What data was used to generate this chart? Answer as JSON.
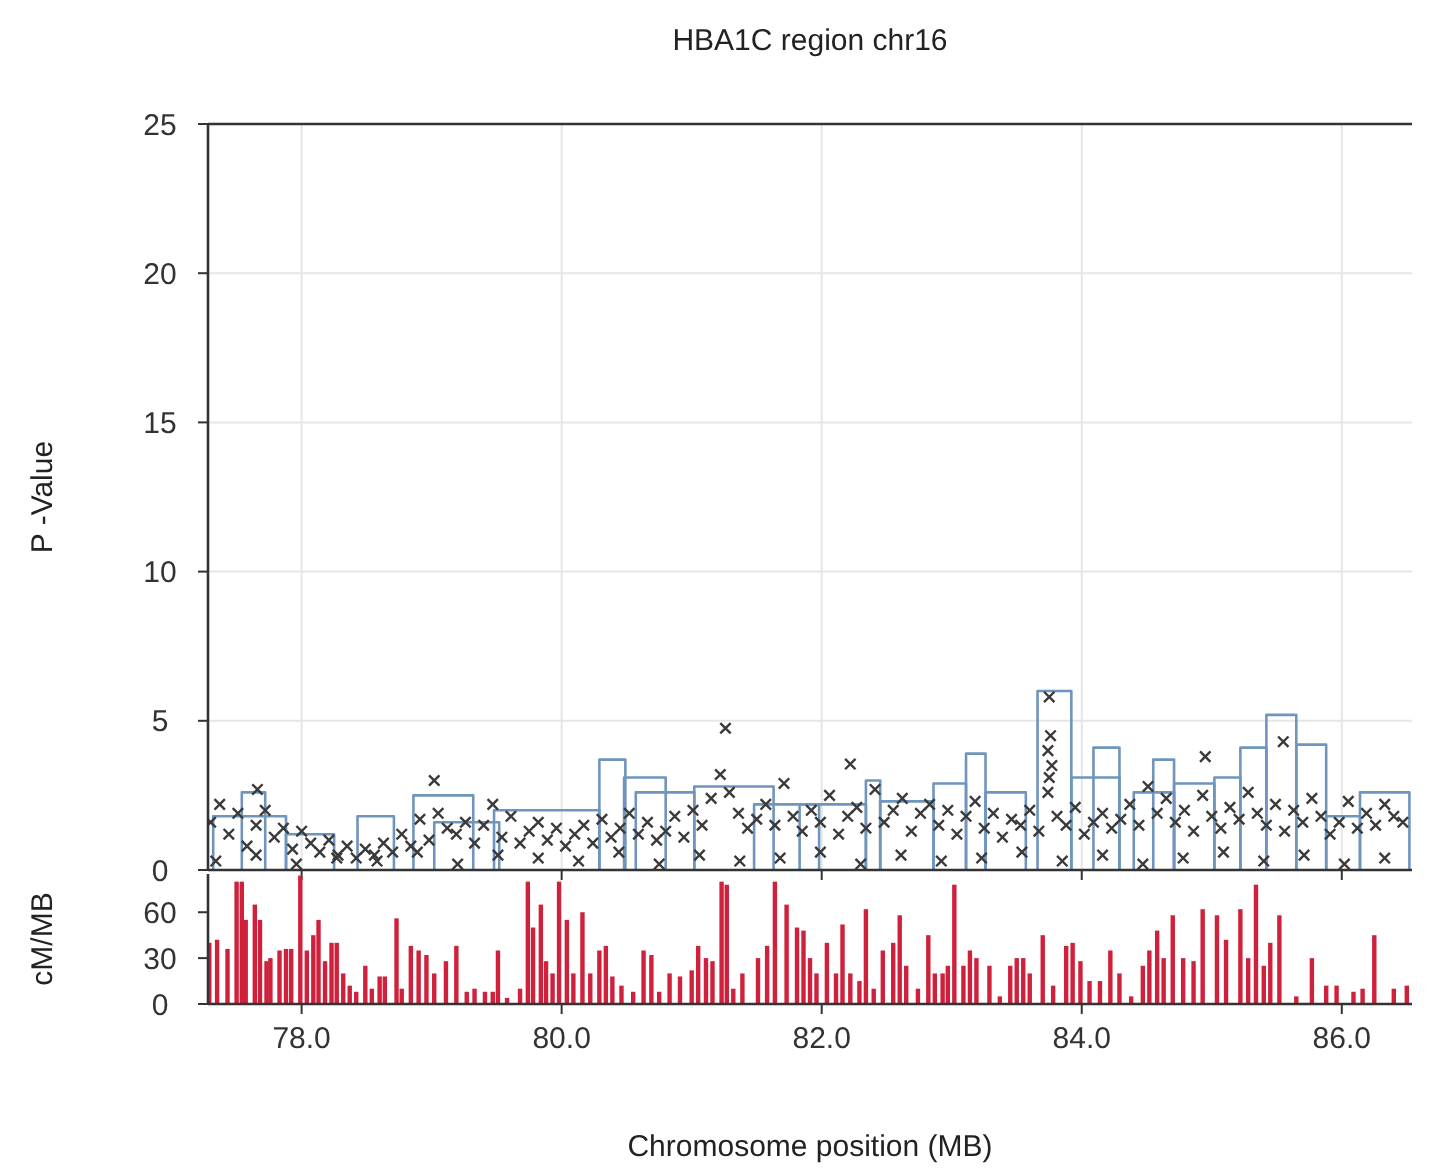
{
  "chart_data": [
    {
      "type": "scatter",
      "title": "HBA1C region chr16",
      "ylabel": "P -Value",
      "xlim": [
        77.28,
        86.54
      ],
      "ylim": [
        0,
        25
      ],
      "xticks": [
        78,
        80,
        82,
        84,
        86
      ],
      "yticks": [
        0,
        5,
        10,
        15,
        20,
        25
      ],
      "grid": true,
      "tick_labels": "y",
      "series": [
        {
          "type": "line",
          "color": "#6f95bd",
          "x": [
            77.32,
            77.32,
            77.88,
            77.88
          ],
          "values": [
            0,
            1.8,
            1.8,
            0
          ]
        },
        {
          "type": "line",
          "color": "#6f95bd",
          "x": [
            77.54,
            77.54,
            77.72,
            77.72
          ],
          "values": [
            0,
            2.6,
            2.6,
            0
          ]
        },
        {
          "type": "line",
          "color": "#6f95bd",
          "x": [
            77.88,
            77.88,
            78.25,
            78.25
          ],
          "values": [
            0,
            1.2,
            1.2,
            0
          ]
        },
        {
          "type": "line",
          "color": "#6f95bd",
          "x": [
            78.43,
            78.43,
            78.71,
            78.71
          ],
          "values": [
            0,
            1.8,
            1.8,
            0
          ]
        },
        {
          "type": "line",
          "color": "#6f95bd",
          "x": [
            78.86,
            78.86,
            79.32,
            79.32
          ],
          "values": [
            0,
            2.5,
            2.5,
            0
          ]
        },
        {
          "type": "line",
          "color": "#6f95bd",
          "x": [
            79.02,
            79.02,
            79.52,
            79.52
          ],
          "values": [
            0,
            1.6,
            1.6,
            0
          ]
        },
        {
          "type": "line",
          "color": "#6f95bd",
          "x": [
            79.48,
            79.48,
            80.29,
            80.29
          ],
          "values": [
            0,
            2.0,
            2.0,
            0
          ]
        },
        {
          "type": "line",
          "color": "#6f95bd",
          "x": [
            80.29,
            80.29,
            80.49,
            80.49
          ],
          "values": [
            0,
            3.7,
            3.7,
            0
          ]
        },
        {
          "type": "line",
          "color": "#6f95bd",
          "x": [
            80.48,
            80.48,
            80.8,
            80.8
          ],
          "values": [
            0,
            3.1,
            3.1,
            0
          ]
        },
        {
          "type": "line",
          "color": "#6f95bd",
          "x": [
            80.57,
            80.57,
            81.02,
            81.02
          ],
          "values": [
            0,
            2.6,
            2.6,
            0
          ]
        },
        {
          "type": "line",
          "color": "#6f95bd",
          "x": [
            81.02,
            81.02,
            81.63,
            81.63
          ],
          "values": [
            0,
            2.8,
            2.8,
            0
          ]
        },
        {
          "type": "line",
          "color": "#6f95bd",
          "x": [
            81.48,
            81.48,
            81.98,
            81.98
          ],
          "values": [
            0,
            2.2,
            2.2,
            0
          ]
        },
        {
          "type": "line",
          "color": "#6f95bd",
          "x": [
            81.83,
            81.83,
            82.34,
            82.34
          ],
          "values": [
            0,
            2.2,
            2.2,
            0
          ]
        },
        {
          "type": "line",
          "color": "#6f95bd",
          "x": [
            82.34,
            82.34,
            82.45,
            82.45
          ],
          "values": [
            0,
            3.0,
            3.0,
            0
          ]
        },
        {
          "type": "line",
          "color": "#6f95bd",
          "x": [
            82.45,
            82.45,
            82.86,
            82.86
          ],
          "values": [
            0,
            2.3,
            2.3,
            0
          ]
        },
        {
          "type": "line",
          "color": "#6f95bd",
          "x": [
            82.86,
            82.86,
            83.11,
            83.11
          ],
          "values": [
            0,
            2.9,
            2.9,
            0
          ]
        },
        {
          "type": "line",
          "color": "#6f95bd",
          "x": [
            83.11,
            83.11,
            83.26,
            83.26
          ],
          "values": [
            0,
            3.9,
            3.9,
            0
          ]
        },
        {
          "type": "line",
          "color": "#6f95bd",
          "x": [
            83.26,
            83.26,
            83.57,
            83.57
          ],
          "values": [
            0,
            2.6,
            2.6,
            0
          ]
        },
        {
          "type": "line",
          "color": "#6f95bd",
          "x": [
            83.66,
            83.66,
            83.92,
            83.92
          ],
          "values": [
            0,
            6.0,
            6.0,
            0
          ]
        },
        {
          "type": "line",
          "color": "#6f95bd",
          "x": [
            83.92,
            83.92,
            84.29,
            84.29
          ],
          "values": [
            0,
            3.1,
            3.1,
            0
          ]
        },
        {
          "type": "line",
          "color": "#6f95bd",
          "x": [
            84.09,
            84.09,
            84.29,
            84.29
          ],
          "values": [
            0,
            4.1,
            4.1,
            0
          ]
        },
        {
          "type": "line",
          "color": "#6f95bd",
          "x": [
            84.4,
            84.4,
            84.71,
            84.71
          ],
          "values": [
            0,
            2.6,
            2.6,
            0
          ]
        },
        {
          "type": "line",
          "color": "#6f95bd",
          "x": [
            84.55,
            84.55,
            84.71,
            84.71
          ],
          "values": [
            0,
            3.7,
            3.7,
            0
          ]
        },
        {
          "type": "line",
          "color": "#6f95bd",
          "x": [
            84.71,
            84.71,
            85.02,
            85.02
          ],
          "values": [
            0,
            2.9,
            2.9,
            0
          ]
        },
        {
          "type": "line",
          "color": "#6f95bd",
          "x": [
            85.02,
            85.02,
            85.22,
            85.22
          ],
          "values": [
            0,
            3.1,
            3.1,
            0
          ]
        },
        {
          "type": "line",
          "color": "#6f95bd",
          "x": [
            85.22,
            85.22,
            85.42,
            85.42
          ],
          "values": [
            0,
            4.1,
            4.1,
            0
          ]
        },
        {
          "type": "line",
          "color": "#6f95bd",
          "x": [
            85.42,
            85.42,
            85.65,
            85.65
          ],
          "values": [
            0,
            5.2,
            5.2,
            0
          ]
        },
        {
          "type": "line",
          "color": "#6f95bd",
          "x": [
            85.65,
            85.65,
            85.88,
            85.88
          ],
          "values": [
            0,
            4.2,
            4.2,
            0
          ]
        },
        {
          "type": "line",
          "color": "#6f95bd",
          "x": [
            85.88,
            85.88,
            86.14,
            86.14
          ],
          "values": [
            0,
            1.8,
            1.8,
            0
          ]
        },
        {
          "type": "line",
          "color": "#6f95bd",
          "x": [
            86.14,
            86.14,
            86.52,
            86.52
          ],
          "values": [
            0,
            2.6,
            2.6,
            0
          ]
        },
        {
          "marker": "cross",
          "color": "#3a3a3a",
          "x": [
            77.3,
            77.37,
            77.44,
            77.51,
            77.58,
            77.65,
            77.72,
            77.79,
            77.86,
            77.93,
            78.0,
            78.07,
            78.14,
            78.21,
            78.28,
            78.35,
            78.42,
            78.49,
            78.56,
            78.63,
            78.7,
            78.77,
            78.84,
            78.91,
            78.98,
            79.05,
            79.12,
            79.19,
            79.26,
            79.33,
            79.4,
            79.47,
            79.54,
            79.61,
            79.68,
            79.75,
            79.82,
            79.89,
            79.96,
            80.03,
            80.1,
            80.17,
            80.24,
            80.31,
            80.38,
            80.45,
            80.52,
            80.59,
            80.66,
            80.73,
            80.8,
            80.87,
            80.94,
            81.01,
            81.08,
            81.15,
            81.22,
            81.29,
            81.36,
            81.43,
            81.5,
            81.57,
            81.64,
            81.71,
            81.78,
            81.85,
            81.92,
            81.99,
            82.06,
            82.13,
            82.2,
            82.27,
            82.34,
            82.41,
            82.48,
            82.55,
            82.62,
            82.69,
            82.76,
            82.83,
            82.9,
            82.97,
            83.04,
            83.11,
            83.18,
            83.25,
            83.32,
            83.39,
            83.46,
            83.53,
            83.6,
            83.67,
            83.74,
            83.81,
            83.88,
            83.95,
            84.02,
            84.09,
            84.16,
            84.23,
            84.3,
            84.37,
            84.44,
            84.51,
            84.58,
            84.65,
            84.72,
            84.79,
            84.86,
            84.93,
            85.0,
            85.07,
            85.14,
            85.21,
            85.28,
            85.35,
            85.42,
            85.49,
            85.56,
            85.63,
            85.7,
            85.77,
            85.84,
            85.91,
            85.98,
            86.05,
            86.12,
            86.19,
            86.26,
            86.33,
            86.4,
            86.47,
            81.26,
            82.22,
            83.75,
            83.76,
            83.74,
            83.77,
            83.75,
            84.95,
            85.55,
            79.02,
            77.66,
            77.34,
            77.65,
            77.96,
            78.27,
            78.58,
            78.89,
            79.2,
            79.51,
            79.82,
            80.13,
            80.44,
            80.75,
            81.06,
            81.37,
            81.68,
            81.99,
            82.3,
            82.61,
            82.92,
            83.23,
            83.54,
            83.85,
            84.16,
            84.47,
            84.78,
            85.09,
            85.4,
            85.71,
            86.02,
            86.33
          ],
          "values": [
            1.6,
            2.2,
            1.2,
            1.9,
            0.8,
            1.5,
            2.0,
            1.1,
            1.4,
            0.7,
            1.3,
            0.9,
            0.6,
            1.0,
            0.5,
            0.8,
            0.4,
            0.7,
            0.5,
            0.9,
            0.6,
            1.2,
            0.8,
            1.7,
            1.0,
            1.9,
            1.4,
            1.2,
            1.6,
            0.9,
            1.5,
            2.2,
            1.1,
            1.8,
            0.9,
            1.3,
            1.6,
            1.0,
            1.4,
            0.8,
            1.2,
            1.5,
            0.9,
            1.7,
            1.1,
            1.4,
            1.9,
            1.2,
            1.6,
            1.0,
            1.3,
            1.8,
            1.1,
            2.0,
            1.5,
            2.4,
            3.2,
            2.6,
            1.9,
            1.4,
            1.7,
            2.2,
            1.5,
            2.9,
            1.8,
            1.3,
            2.0,
            1.6,
            2.5,
            1.2,
            1.8,
            2.1,
            1.4,
            2.7,
            1.6,
            2.0,
            2.4,
            1.3,
            1.9,
            2.2,
            1.5,
            2.0,
            1.2,
            1.8,
            2.3,
            1.4,
            1.9,
            1.1,
            1.7,
            1.5,
            2.0,
            1.3,
            2.6,
            1.8,
            1.5,
            2.1,
            1.2,
            1.6,
            1.9,
            1.4,
            1.7,
            2.2,
            1.5,
            2.8,
            1.9,
            2.4,
            1.6,
            2.0,
            1.3,
            2.5,
            1.8,
            1.4,
            2.1,
            1.7,
            2.6,
            1.9,
            1.5,
            2.2,
            1.3,
            2.0,
            1.6,
            2.4,
            1.8,
            1.2,
            1.6,
            2.3,
            1.4,
            1.9,
            1.5,
            2.2,
            1.8,
            1.6,
            4.75,
            3.55,
            5.8,
            4.5,
            4.0,
            3.5,
            3.1,
            3.8,
            4.3,
            3.0,
            2.7,
            0.3,
            0.5,
            0.2,
            0.4,
            0.3,
            0.6,
            0.2,
            0.5,
            0.4,
            0.3,
            0.6,
            0.2,
            0.5,
            0.3,
            0.4,
            0.6,
            0.2,
            0.5,
            0.3,
            0.4,
            0.6,
            0.3,
            0.5,
            0.2,
            0.4,
            0.6,
            0.3,
            0.5,
            0.2,
            0.4
          ]
        }
      ]
    },
    {
      "type": "bar",
      "xlabel": "Chromosome position (MB)",
      "ylabel": "cM/MB",
      "xlim": [
        77.28,
        86.54
      ],
      "ylim": [
        0,
        85
      ],
      "xticks": [
        {
          "value": 78,
          "label": "78.0"
        },
        {
          "value": 80,
          "label": "80.0"
        },
        {
          "value": 82,
          "label": "82.0"
        },
        {
          "value": 84,
          "label": "84.0"
        },
        {
          "value": 86,
          "label": "86.0"
        }
      ],
      "yticks": [
        0,
        30,
        60
      ],
      "series": [
        {
          "color": "#d0213c",
          "x": [
            77.29,
            77.35,
            77.43,
            77.5,
            77.54,
            77.57,
            77.64,
            77.68,
            77.73,
            77.76,
            77.83,
            77.88,
            77.92,
            77.99,
            78.04,
            78.09,
            78.13,
            78.18,
            78.23,
            78.27,
            78.32,
            78.37,
            78.42,
            78.49,
            78.54,
            78.6,
            78.64,
            78.73,
            78.77,
            78.84,
            78.9,
            78.96,
            79.02,
            79.11,
            79.19,
            79.27,
            79.33,
            79.41,
            79.47,
            79.51,
            79.58,
            79.68,
            79.74,
            79.78,
            79.84,
            79.88,
            79.93,
            79.98,
            80.04,
            80.09,
            80.16,
            80.22,
            80.29,
            80.34,
            80.39,
            80.46,
            80.55,
            80.63,
            80.69,
            80.75,
            80.83,
            80.91,
            81.0,
            81.05,
            81.11,
            81.16,
            81.23,
            81.27,
            81.32,
            81.39,
            81.51,
            81.58,
            81.64,
            81.73,
            81.81,
            81.86,
            81.91,
            81.96,
            82.04,
            82.11,
            82.16,
            82.22,
            82.29,
            82.34,
            82.4,
            82.47,
            82.55,
            82.6,
            82.65,
            82.74,
            82.82,
            82.87,
            82.93,
            82.97,
            83.02,
            83.09,
            83.14,
            83.19,
            83.29,
            83.37,
            83.45,
            83.5,
            83.55,
            83.6,
            83.7,
            83.78,
            83.88,
            83.93,
            83.99,
            84.06,
            84.14,
            84.22,
            84.29,
            84.38,
            84.47,
            84.52,
            84.58,
            84.63,
            84.7,
            84.78,
            84.86,
            84.93,
            85.04,
            85.11,
            85.22,
            85.28,
            85.34,
            85.4,
            85.45,
            85.52,
            85.65,
            85.77,
            85.88,
            85.96,
            86.09,
            86.16,
            86.25,
            86.4,
            86.5
          ],
          "values": [
            40,
            42,
            36,
            80,
            80,
            55,
            65,
            55,
            28,
            30,
            35,
            36,
            36,
            84,
            35,
            45,
            55,
            28,
            40,
            40,
            20,
            12,
            8,
            25,
            10,
            18,
            18,
            56,
            10,
            38,
            35,
            32,
            20,
            28,
            38,
            8,
            10,
            8,
            8,
            35,
            4,
            10,
            80,
            50,
            65,
            28,
            20,
            80,
            55,
            20,
            60,
            20,
            35,
            38,
            18,
            12,
            8,
            35,
            32,
            8,
            20,
            18,
            22,
            38,
            30,
            28,
            80,
            78,
            10,
            20,
            30,
            38,
            80,
            65,
            50,
            48,
            30,
            20,
            40,
            20,
            52,
            20,
            15,
            62,
            10,
            35,
            40,
            58,
            25,
            10,
            45,
            20,
            20,
            25,
            78,
            25,
            35,
            30,
            25,
            5,
            25,
            30,
            30,
            20,
            45,
            12,
            38,
            40,
            28,
            15,
            15,
            35,
            20,
            5,
            25,
            35,
            48,
            30,
            58,
            30,
            28,
            62,
            58,
            42,
            62,
            30,
            78,
            25,
            40,
            58,
            5,
            30,
            12,
            12,
            8,
            10,
            45,
            10,
            12
          ]
        }
      ]
    }
  ]
}
